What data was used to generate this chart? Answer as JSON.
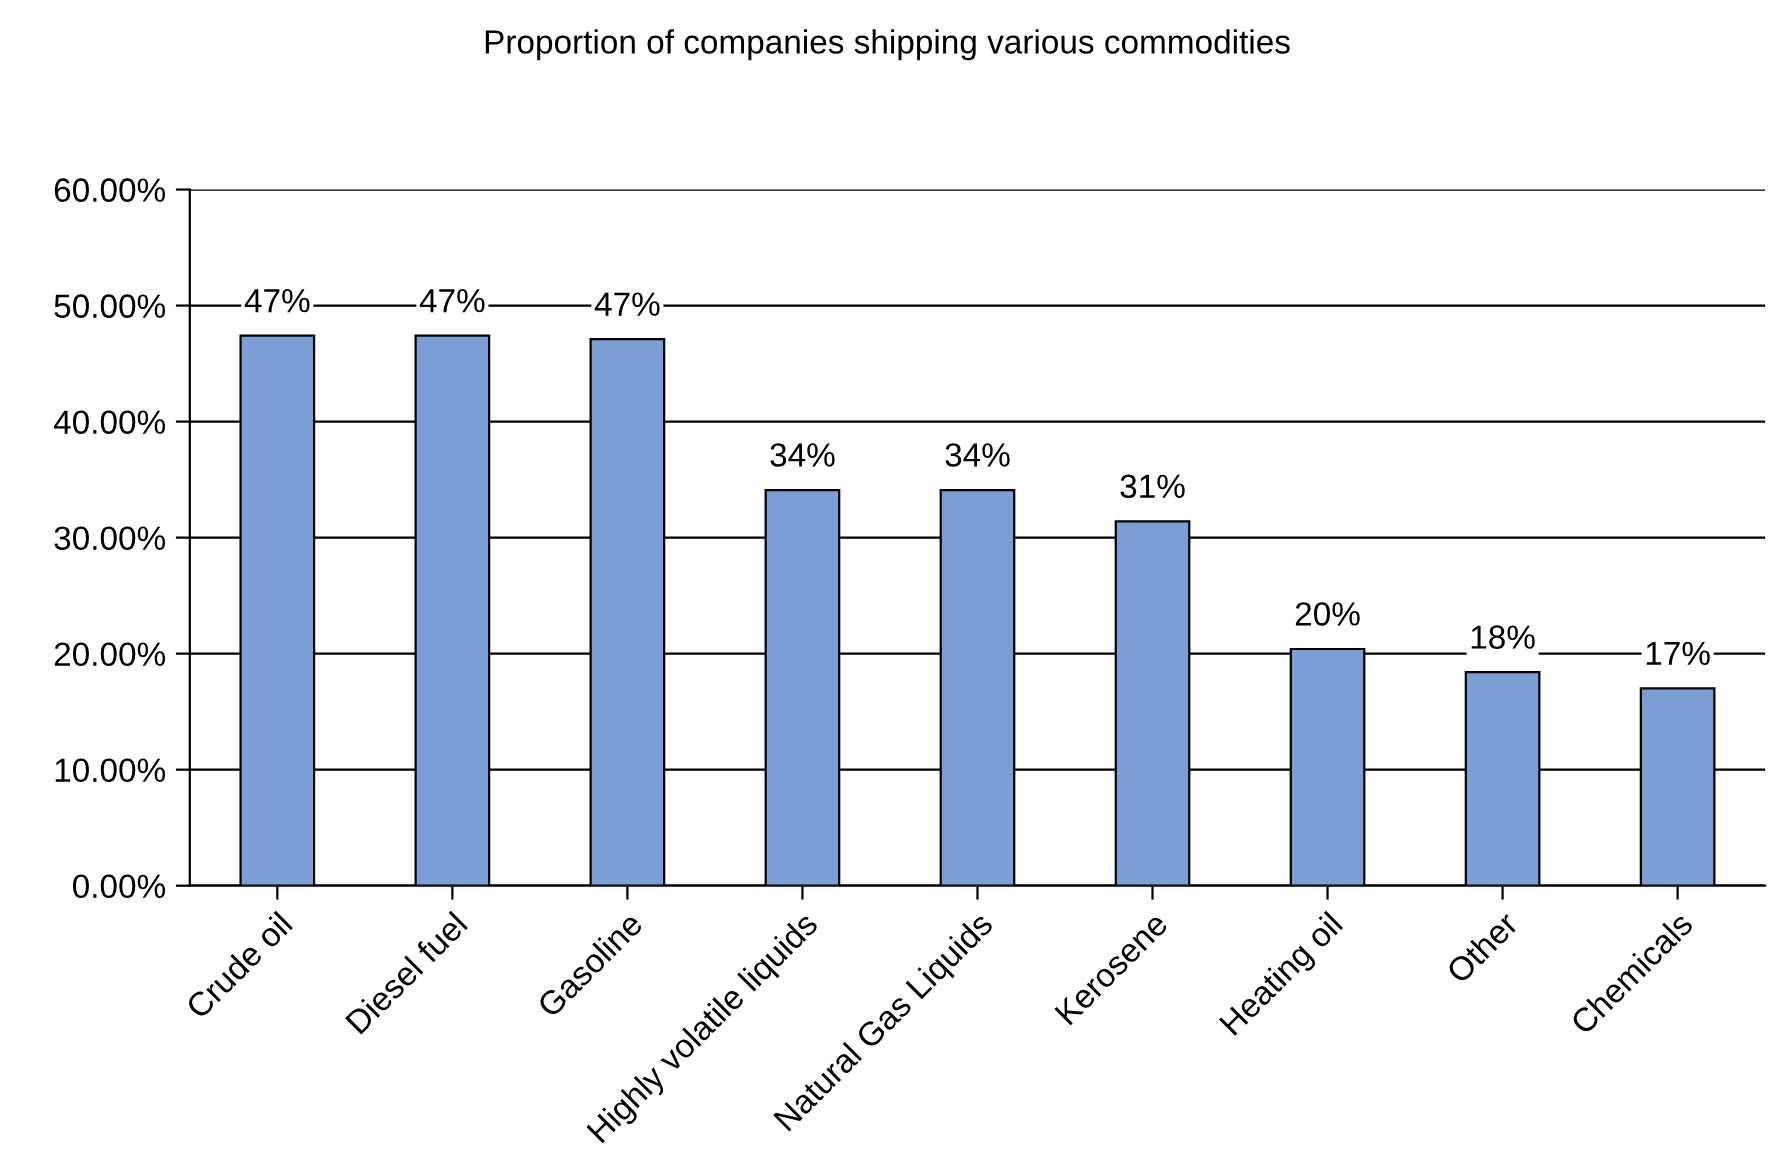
{
  "chart_data": {
    "type": "bar",
    "title": "Proportion of companies shipping various commodities",
    "categories": [
      "Crude oil",
      "Diesel fuel",
      "Gasoline",
      "Highly volatile liquids",
      "Natural Gas Liquids",
      "Kerosene",
      "Heating oil",
      "Other",
      "Chemicals"
    ],
    "values": [
      47.4,
      47.4,
      47.1,
      34.1,
      34.1,
      31.4,
      20.4,
      18.4,
      17.0
    ],
    "value_labels": [
      "47%",
      "47%",
      "47%",
      "34%",
      "34%",
      "31%",
      "20%",
      "18%",
      "17%"
    ],
    "color": "#7b9fd4",
    "ylim": [
      0,
      60
    ],
    "yticks": [
      {
        "value": 0,
        "label": "0.00%"
      },
      {
        "value": 10,
        "label": "10.00%"
      },
      {
        "value": 20,
        "label": "20.00%"
      },
      {
        "value": 30,
        "label": "30.00%"
      },
      {
        "value": 40,
        "label": "40.00%"
      },
      {
        "value": 50,
        "label": "50.00%"
      },
      {
        "value": 60,
        "label": "60.00%"
      }
    ],
    "grid": "y",
    "legend": false
  }
}
